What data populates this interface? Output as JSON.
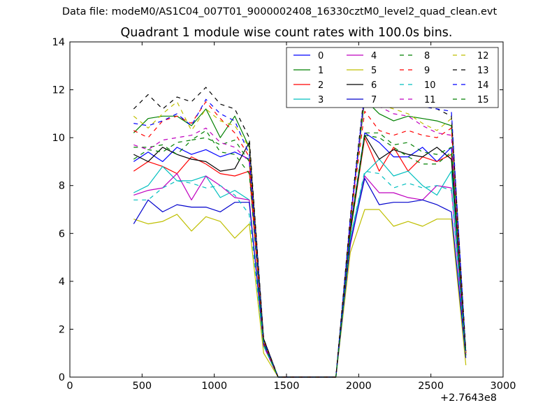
{
  "figure": {
    "suptitle": "Data file: modeM0/AS1C04_007T01_9000002408_16330cztM0_level2_quad_clean.evt",
    "x_offset_label": "+2.7643e8"
  },
  "chart_data": {
    "type": "line",
    "title": "Quadrant 1 module wise count rates with 100.0s bins.",
    "xlabel": "",
    "ylabel": "",
    "xlim": [
      0,
      3000
    ],
    "ylim": [
      0,
      14
    ],
    "x_ticks": [
      0,
      500,
      1000,
      1500,
      2000,
      2500,
      3000
    ],
    "y_ticks": [
      0,
      2,
      4,
      6,
      8,
      10,
      12,
      14
    ],
    "x_offset": 276430000,
    "grid": false,
    "legend_placement": "top-right",
    "legend_columns": 4,
    "x": [
      442,
      542,
      642,
      742,
      842,
      942,
      1042,
      1142,
      1242,
      1342,
      1442,
      1542,
      1642,
      1742,
      1842,
      1942,
      2042,
      2142,
      2242,
      2342,
      2442,
      2542,
      2642,
      2742
    ],
    "series": [
      {
        "name": "0",
        "color": "#0000ff",
        "dash": false,
        "values": [
          9.0,
          9.4,
          9.0,
          9.6,
          9.3,
          9.5,
          9.2,
          9.4,
          9.1,
          1.5,
          0,
          0,
          0,
          0,
          0,
          6.2,
          10.2,
          9.8,
          9.2,
          9.2,
          9.6,
          9.0,
          9.6,
          1.0
        ]
      },
      {
        "name": "1",
        "color": "#008000",
        "dash": false,
        "values": [
          10.2,
          10.8,
          10.9,
          10.9,
          10.5,
          11.2,
          10.0,
          10.9,
          9.6,
          1.5,
          0,
          0,
          0,
          0,
          0,
          6.5,
          11.6,
          11.0,
          10.7,
          10.9,
          10.8,
          10.7,
          10.5,
          1.0
        ]
      },
      {
        "name": "2",
        "color": "#ff0000",
        "dash": false,
        "values": [
          8.6,
          9.0,
          8.8,
          8.5,
          9.2,
          8.9,
          8.5,
          8.4,
          8.6,
          1.4,
          0,
          0,
          0,
          0,
          0,
          6.0,
          10.0,
          8.6,
          9.6,
          8.6,
          9.2,
          9.0,
          9.3,
          1.0
        ]
      },
      {
        "name": "3",
        "color": "#00bfbf",
        "dash": false,
        "values": [
          7.7,
          8.0,
          8.8,
          8.2,
          8.2,
          8.4,
          7.5,
          7.8,
          7.4,
          1.3,
          0,
          0,
          0,
          0,
          0,
          5.8,
          8.5,
          9.1,
          8.4,
          8.6,
          8.0,
          7.6,
          8.6,
          0.9
        ]
      },
      {
        "name": "4",
        "color": "#bf00bf",
        "dash": false,
        "values": [
          7.6,
          7.8,
          7.9,
          8.5,
          7.4,
          8.4,
          8.0,
          7.5,
          7.4,
          1.3,
          0,
          0,
          0,
          0,
          0,
          5.5,
          8.4,
          7.7,
          7.7,
          7.5,
          7.4,
          8.0,
          7.9,
          0.9
        ]
      },
      {
        "name": "5",
        "color": "#bfbf00",
        "dash": false,
        "values": [
          6.6,
          6.4,
          6.5,
          6.8,
          6.1,
          6.7,
          6.5,
          5.8,
          6.4,
          1.0,
          0,
          0,
          0,
          0,
          0,
          5.2,
          7.0,
          7.0,
          6.3,
          6.5,
          6.3,
          6.6,
          6.6,
          0.5
        ]
      },
      {
        "name": "6",
        "color": "#000000",
        "dash": false,
        "values": [
          9.3,
          9.0,
          9.6,
          9.3,
          9.1,
          9.0,
          8.6,
          8.7,
          9.8,
          1.6,
          0,
          0,
          0,
          0,
          0,
          6.1,
          10.1,
          9.1,
          9.5,
          9.3,
          9.2,
          9.6,
          9.1,
          1.0
        ]
      },
      {
        "name": "7",
        "color": "#0000cc",
        "dash": false,
        "values": [
          6.4,
          7.4,
          6.9,
          7.2,
          7.1,
          7.1,
          6.9,
          7.3,
          7.3,
          1.4,
          0,
          0,
          0,
          0,
          0,
          5.6,
          8.3,
          7.2,
          7.3,
          7.3,
          7.4,
          7.2,
          6.9,
          0.8
        ]
      },
      {
        "name": "8",
        "color": "#008000",
        "dash": true,
        "values": [
          9.6,
          9.6,
          9.7,
          9.3,
          9.9,
          10.0,
          9.7,
          9.9,
          9.0,
          1.5,
          0,
          0,
          0,
          0,
          0,
          6.3,
          10.2,
          10.2,
          9.7,
          9.8,
          9.4,
          9.3,
          9.6,
          1.0
        ]
      },
      {
        "name": "9",
        "color": "#ff0000",
        "dash": true,
        "values": [
          10.3,
          10.0,
          10.7,
          10.9,
          10.6,
          11.5,
          10.8,
          10.2,
          9.2,
          1.5,
          0,
          0,
          0,
          0,
          0,
          6.5,
          11.1,
          10.3,
          10.1,
          10.3,
          10.1,
          10.0,
          10.4,
          1.0
        ]
      },
      {
        "name": "10",
        "color": "#00bfbf",
        "dash": true,
        "values": [
          7.4,
          7.4,
          7.9,
          8.2,
          8.1,
          7.9,
          8.0,
          7.6,
          6.8,
          1.3,
          0,
          0,
          0,
          0,
          0,
          5.8,
          8.6,
          8.5,
          7.9,
          8.1,
          7.9,
          8.0,
          7.8,
          0.9
        ]
      },
      {
        "name": "11",
        "color": "#bf00bf",
        "dash": true,
        "values": [
          9.7,
          9.5,
          9.9,
          10.0,
          10.1,
          10.4,
          9.8,
          9.6,
          9.0,
          1.4,
          0,
          0,
          0,
          0,
          0,
          6.4,
          11.8,
          11.3,
          11.0,
          10.9,
          10.5,
          10.2,
          10.1,
          1.0
        ]
      },
      {
        "name": "12",
        "color": "#bfbf00",
        "dash": true,
        "values": [
          10.9,
          10.4,
          11.0,
          11.5,
          10.3,
          11.2,
          10.7,
          10.5,
          9.6,
          1.5,
          0,
          0,
          0,
          0,
          0,
          6.6,
          11.8,
          11.4,
          11.2,
          11.0,
          10.6,
          10.3,
          10.8,
          1.0
        ]
      },
      {
        "name": "13",
        "color": "#000000",
        "dash": true,
        "values": [
          11.2,
          11.8,
          11.2,
          11.7,
          11.5,
          12.1,
          11.4,
          11.2,
          10.0,
          1.6,
          0,
          0,
          0,
          0,
          0,
          6.7,
          12.0,
          11.4,
          11.8,
          11.8,
          11.3,
          11.2,
          10.9,
          1.1
        ]
      },
      {
        "name": "14",
        "color": "#0000ff",
        "dash": true,
        "values": [
          10.6,
          10.5,
          10.7,
          11.0,
          10.5,
          11.6,
          11.0,
          10.7,
          9.3,
          1.5,
          0,
          0,
          0,
          0,
          0,
          6.6,
          11.9,
          11.5,
          11.4,
          11.5,
          11.3,
          11.2,
          11.1,
          1.0
        ]
      },
      {
        "name": "15",
        "color": "#008000",
        "dash": true,
        "values": [
          9.1,
          9.5,
          9.4,
          9.8,
          9.9,
          10.3,
          9.4,
          9.3,
          8.5,
          1.4,
          0,
          0,
          0,
          0,
          0,
          6.0,
          10.1,
          10.0,
          9.6,
          9.2,
          8.9,
          8.9,
          9.4,
          0.9
        ]
      }
    ]
  }
}
